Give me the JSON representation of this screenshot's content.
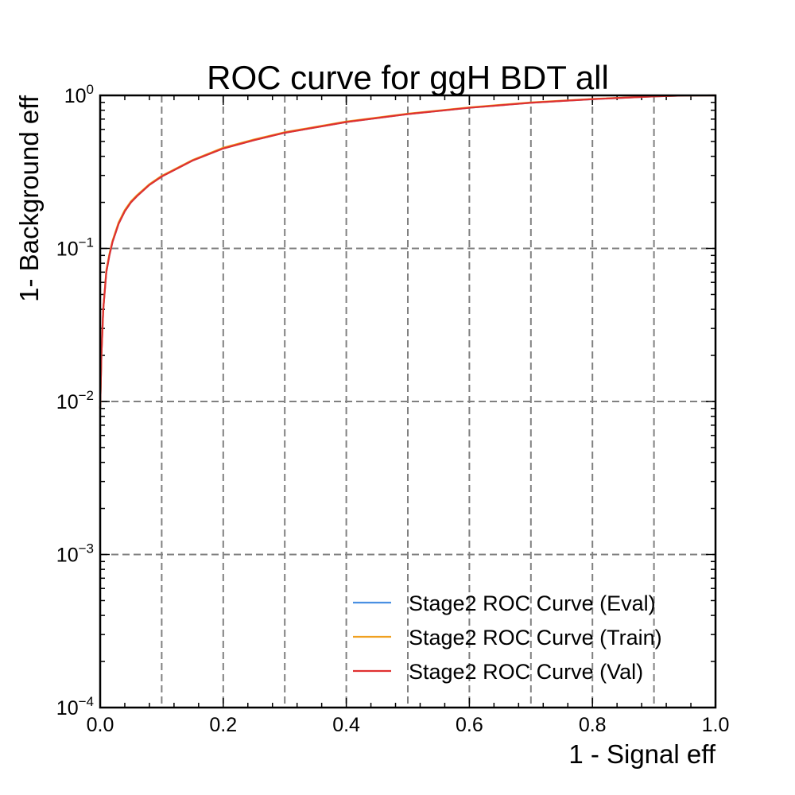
{
  "chart_data": {
    "type": "line",
    "title": "ROC curve for ggH BDT all",
    "xlabel": "1 - Signal eff",
    "ylabel": "1- Background eff",
    "xlim": [
      0.0,
      1.0
    ],
    "ylim": [
      0.0001,
      1
    ],
    "yscale": "log",
    "grid": true,
    "grid_style": "dashed",
    "legend_position": "lower-right",
    "x_ticks": [
      "0.0",
      "0.2",
      "0.4",
      "0.6",
      "0.8",
      "1.0"
    ],
    "x_tick_values": [
      0.0,
      0.2,
      0.4,
      0.6,
      0.8,
      1.0
    ],
    "y_ticks": [
      {
        "value": 1,
        "base": "10",
        "exp": "0"
      },
      {
        "value": 0.1,
        "base": "10",
        "exp": "−1"
      },
      {
        "value": 0.01,
        "base": "10",
        "exp": "−2"
      },
      {
        "value": 0.001,
        "base": "10",
        "exp": "−3"
      },
      {
        "value": 0.0001,
        "base": "10",
        "exp": "−4"
      }
    ],
    "x": [
      0.0,
      0.002,
      0.005,
      0.01,
      0.015,
      0.02,
      0.03,
      0.04,
      0.05,
      0.06,
      0.08,
      0.1,
      0.15,
      0.2,
      0.25,
      0.3,
      0.4,
      0.5,
      0.6,
      0.7,
      0.8,
      0.9,
      0.95,
      1.0
    ],
    "series": [
      {
        "name": "Stage2 ROC Curve (Eval)",
        "color": "#4a90e2",
        "values": [
          0.009,
          0.02,
          0.04,
          0.07,
          0.09,
          0.11,
          0.145,
          0.175,
          0.2,
          0.22,
          0.26,
          0.295,
          0.375,
          0.45,
          0.51,
          0.57,
          0.67,
          0.755,
          0.83,
          0.895,
          0.945,
          0.985,
          0.998,
          1.0
        ]
      },
      {
        "name": "Stage2 ROC Curve (Train)",
        "color": "#f0a020",
        "values": [
          0.009,
          0.02,
          0.04,
          0.072,
          0.092,
          0.112,
          0.148,
          0.178,
          0.203,
          0.223,
          0.263,
          0.298,
          0.378,
          0.455,
          0.515,
          0.575,
          0.675,
          0.76,
          0.835,
          0.9,
          0.948,
          0.986,
          0.998,
          1.0
        ]
      },
      {
        "name": "Stage2 ROC Curve (Val)",
        "color": "#e03030",
        "values": [
          0.009,
          0.02,
          0.04,
          0.07,
          0.09,
          0.11,
          0.145,
          0.175,
          0.2,
          0.22,
          0.26,
          0.295,
          0.375,
          0.45,
          0.51,
          0.57,
          0.67,
          0.755,
          0.83,
          0.895,
          0.945,
          0.985,
          0.998,
          1.0
        ]
      }
    ]
  }
}
